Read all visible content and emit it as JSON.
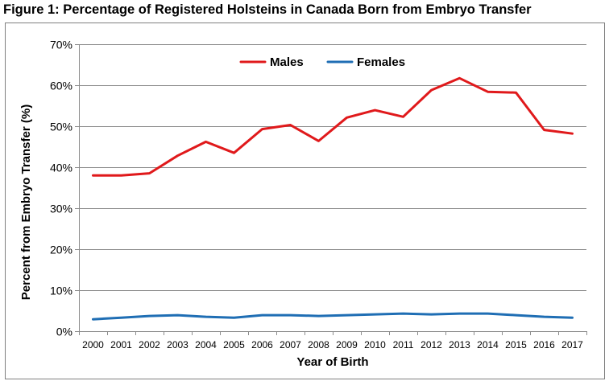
{
  "figure_title": "Figure 1: Percentage of Registered Holsteins in Canada Born from Embryo Transfer",
  "chart_data": {
    "type": "line",
    "xlabel": "Year of Birth",
    "ylabel": "Percent from Embryo Transfer (%)",
    "ylim": [
      0,
      70
    ],
    "yticks": [
      "0%",
      "10%",
      "20%",
      "30%",
      "40%",
      "50%",
      "60%",
      "70%"
    ],
    "ytick_values": [
      0,
      10,
      20,
      30,
      40,
      50,
      60,
      70
    ],
    "categories": [
      "2000",
      "2001",
      "2002",
      "2003",
      "2004",
      "2005",
      "2006",
      "2007",
      "2008",
      "2009",
      "2010",
      "2011",
      "2012",
      "2013",
      "2014",
      "2015",
      "2016",
      "2017"
    ],
    "grid": true,
    "legend_position": "top-center",
    "series": [
      {
        "name": "Males",
        "color": "#e0191b",
        "values": [
          38.0,
          38.0,
          38.5,
          42.8,
          46.2,
          43.5,
          49.3,
          50.3,
          46.4,
          52.1,
          53.9,
          52.3,
          58.8,
          61.7,
          58.4,
          58.2,
          49.1,
          48.2
        ]
      },
      {
        "name": "Females",
        "color": "#1f6eb4",
        "values": [
          2.9,
          3.3,
          3.7,
          3.9,
          3.5,
          3.3,
          3.9,
          3.9,
          3.7,
          3.9,
          4.1,
          4.3,
          4.1,
          4.3,
          4.3,
          3.9,
          3.5,
          3.3
        ]
      }
    ]
  }
}
